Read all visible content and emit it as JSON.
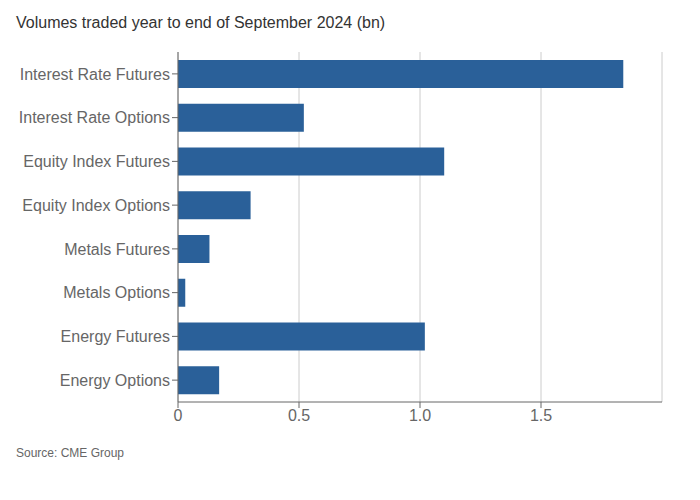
{
  "chart_data": {
    "type": "bar",
    "orientation": "horizontal",
    "title": "Volumes traded year to end of September 2024 (bn)",
    "annotations": [
      "Source: CME Group"
    ],
    "categories": [
      "Energy Options",
      "Energy Futures",
      "Metals Options",
      "Metals Futures",
      "Equity Index Options",
      "Equity Index Futures",
      "Interest Rate Options",
      "Interest Rate Futures"
    ],
    "values": [
      0.17,
      1.02,
      0.03,
      0.13,
      0.3,
      1.1,
      0.52,
      1.84
    ],
    "color": "#2a6099",
    "xlim": [
      0,
      2.0
    ],
    "xticks": [
      0,
      0.5,
      {
        "value": 1.0,
        "label": "1.0"
      },
      1.5
    ],
    "grid": true
  }
}
